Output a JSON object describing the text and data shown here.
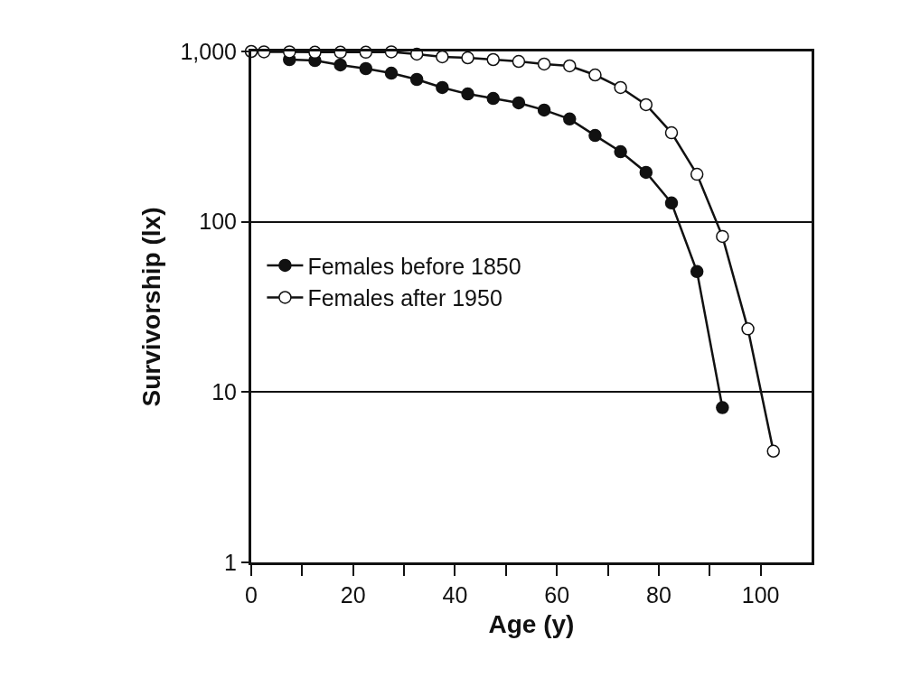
{
  "chart_data": {
    "type": "line",
    "xlabel": "Age (y)",
    "ylabel": "Survivorship (lx)",
    "series": [
      {
        "name": "Females before 1850",
        "color": "#111111",
        "x": [
          7.5,
          12.5,
          17.5,
          22.5,
          27.5,
          32.5,
          37.5,
          42.5,
          47.5,
          52.5,
          57.5,
          62.5,
          67.5,
          72.5,
          77.5,
          82.5,
          87.5,
          92.5
        ],
        "values": [
          896,
          885,
          833,
          793,
          746,
          685,
          614,
          563,
          530,
          499,
          453,
          401,
          321,
          258,
          195,
          129,
          51,
          8.1
        ]
      },
      {
        "name": "Females after 1950",
        "color": "#ffffff",
        "x": [
          0,
          2.5,
          7.5,
          12.5,
          17.5,
          22.5,
          27.5,
          32.5,
          37.5,
          42.5,
          47.5,
          52.5,
          57.5,
          62.5,
          67.5,
          72.5,
          77.5,
          82.5,
          87.5,
          92.5,
          97.5,
          102.5
        ],
        "values": [
          1000,
          995,
          995,
          990,
          990,
          990,
          995,
          965,
          930,
          918,
          896,
          874,
          843,
          823,
          728,
          614,
          487,
          333,
          190,
          82,
          23.5,
          4.5
        ]
      }
    ],
    "log": "y",
    "xlim": [
      0,
      110
    ],
    "ylim": [
      1,
      1000
    ],
    "xticks": [
      0,
      {
        "value": 10,
        "label": null
      },
      20,
      {
        "value": 30,
        "label": null
      },
      40,
      {
        "value": 50,
        "label": null
      },
      60,
      {
        "value": 70,
        "label": null
      },
      80,
      {
        "value": 90,
        "label": null
      },
      100
    ],
    "yticks": [
      1,
      10,
      100,
      {
        "value": 1000,
        "label": "1,000"
      }
    ],
    "grid": "y",
    "legend": "left",
    "marker": "circle",
    "line_style": "solid"
  }
}
